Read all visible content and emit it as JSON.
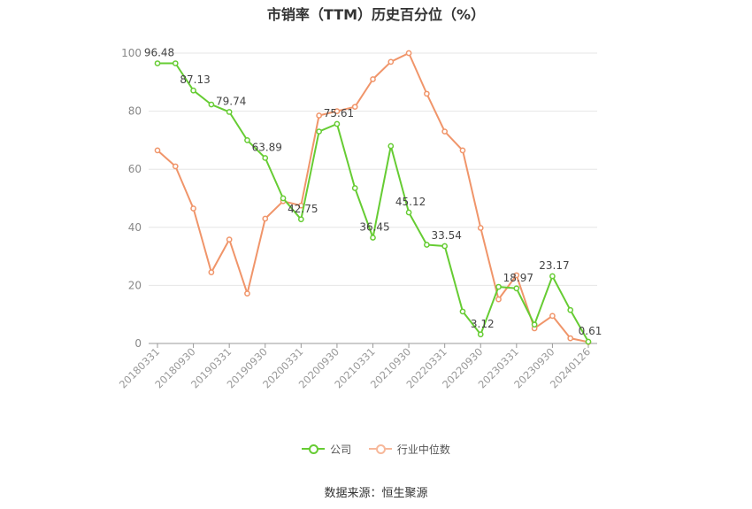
{
  "chart_data": {
    "type": "line",
    "title": "市销率（TTM）历史百分位（%）",
    "ylim": [
      0,
      100
    ],
    "yticks": [
      0,
      20,
      40,
      60,
      80,
      100
    ],
    "x": [
      "20180331",
      "20180630",
      "20180930",
      "20181231",
      "20190331",
      "20190630",
      "20190930",
      "20191231",
      "20200331",
      "20200630",
      "20200930",
      "20201231",
      "20210331",
      "20210630",
      "20210930",
      "20211231",
      "20220331",
      "20220630",
      "20220930",
      "20221231",
      "20230331",
      "20230630",
      "20230930",
      "20231231",
      "20240126"
    ],
    "xtick_labels": [
      "20180331",
      "20180930",
      "20190331",
      "20190930",
      "20200331",
      "20200930",
      "20210331",
      "20210930",
      "20220331",
      "20220930",
      "20230331",
      "20230930",
      "20240126"
    ],
    "series": [
      {
        "name": "公司",
        "color": "#66cc33",
        "values": [
          96.48,
          96.48,
          87.13,
          82.3,
          79.74,
          70.0,
          63.89,
          50.0,
          42.75,
          73.0,
          75.61,
          53.5,
          36.45,
          68.0,
          45.12,
          34.0,
          33.54,
          11.0,
          3.12,
          19.5,
          18.97,
          6.5,
          23.17,
          11.5,
          0.61
        ]
      },
      {
        "name": "行业中位数",
        "color": "#f0956a",
        "values": [
          66.5,
          61.0,
          46.5,
          24.5,
          35.8,
          17.2,
          43.0,
          49.0,
          47.5,
          78.5,
          80.0,
          81.5,
          91.0,
          97.0,
          100.0,
          86.0,
          73.0,
          66.5,
          39.8,
          15.2,
          23.5,
          5.2,
          9.5,
          1.8,
          0.5
        ]
      }
    ],
    "data_labels": [
      {
        "index": 0,
        "text": "96.48"
      },
      {
        "index": 2,
        "text": "87.13"
      },
      {
        "index": 4,
        "text": "79.74"
      },
      {
        "index": 6,
        "text": "63.89"
      },
      {
        "index": 8,
        "text": "42.75"
      },
      {
        "index": 10,
        "text": "75.61"
      },
      {
        "index": 12,
        "text": "36.45"
      },
      {
        "index": 14,
        "text": "45.12"
      },
      {
        "index": 16,
        "text": "33.54"
      },
      {
        "index": 18,
        "text": "3.12"
      },
      {
        "index": 20,
        "text": "18.97"
      },
      {
        "index": 22,
        "text": "23.17"
      },
      {
        "index": 24,
        "text": "0.61"
      }
    ],
    "legend": [
      "公司",
      "行业中位数"
    ],
    "legend_position": "bottom",
    "grid": true
  },
  "source": "数据来源：恒生聚源"
}
